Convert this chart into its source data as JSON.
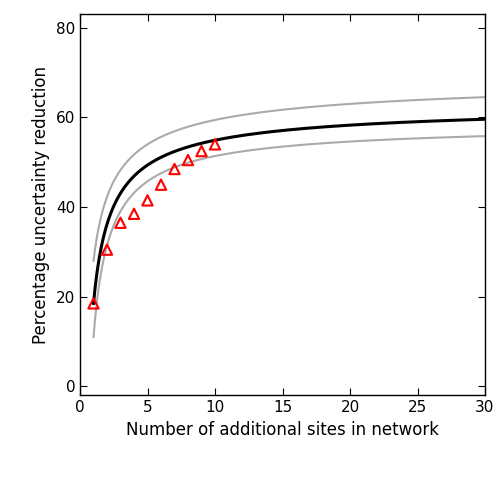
{
  "title": "",
  "xlabel": "Number of additional sites in network",
  "ylabel": "Percentage uncertainty reduction",
  "xlim": [
    0,
    30
  ],
  "ylim": [
    -2,
    83
  ],
  "xticks": [
    0,
    5,
    10,
    15,
    20,
    25,
    30
  ],
  "yticks": [
    0,
    20,
    40,
    60,
    80
  ],
  "gamma1": 63.5,
  "alpha_val": -45.0,
  "beta_val": 0.72,
  "gamma1_up": 70.0,
  "alpha_up": -42.0,
  "beta_up": 0.6,
  "gamma1_lo": 59.0,
  "alpha_lo": -48.0,
  "beta_lo": 0.8,
  "data_x": [
    1,
    2,
    3,
    4,
    5,
    6,
    7,
    8,
    9,
    10
  ],
  "data_y": [
    18.5,
    30.5,
    36.5,
    38.5,
    41.5,
    45.0,
    48.5,
    50.5,
    52.5,
    54.0
  ],
  "fit_color": "#000000",
  "ci_color": "#aaaaaa",
  "data_color": "#ff0000",
  "background_color": "#ffffff",
  "fit_linewidth": 2.2,
  "ci_linewidth": 1.5
}
